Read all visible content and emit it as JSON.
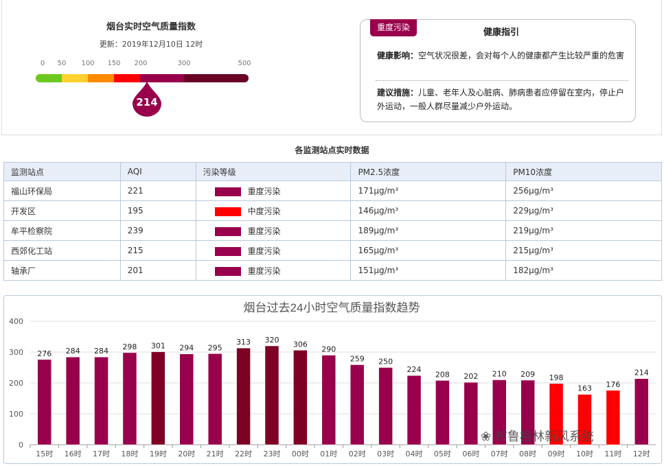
{
  "header": {
    "title": "烟台实时空气质量指数",
    "update": "更新：2019年12月10日 12时",
    "aqi_value": "214",
    "scale_ticks": [
      "0",
      "50",
      "100",
      "150",
      "200",
      "300",
      "500"
    ]
  },
  "health": {
    "badge": "重度污染",
    "title": "健康指引",
    "effect_label": "健康影响：",
    "effect_text": "空气状况很差，会对每个人的健康都产生比较严重的危害",
    "advice_label": "建议措施：",
    "advice_text": "儿童、老年人及心脏病、肺病患者应停留在室内，停止户外运动，一般人群尽量减少户外运动。"
  },
  "stations": {
    "title": "各监测站点实时数据",
    "headers": [
      "监测站点",
      "AQI",
      "污染等级",
      "PM2.5浓度",
      "PM10浓度"
    ],
    "rows": [
      {
        "name": "福山环保局",
        "aqi": "221",
        "level": "重度污染",
        "color": "#99004c",
        "pm25": "171μg/m³",
        "pm10": "256μg/m³"
      },
      {
        "name": "开发区",
        "aqi": "195",
        "level": "中度污染",
        "color": "#ff0000",
        "pm25": "146μg/m³",
        "pm10": "229μg/m³"
      },
      {
        "name": "牟平检察院",
        "aqi": "239",
        "level": "重度污染",
        "color": "#99004c",
        "pm25": "189μg/m³",
        "pm10": "219μg/m³"
      },
      {
        "name": "西郊化工站",
        "aqi": "215",
        "level": "重度污染",
        "color": "#99004c",
        "pm25": "165μg/m³",
        "pm10": "215μg/m³"
      },
      {
        "name": "轴承厂",
        "aqi": "201",
        "level": "重度污染",
        "color": "#99004c",
        "pm25": "151μg/m³",
        "pm10": "182μg/m³"
      }
    ]
  },
  "watermark": "布鲁格林新风系统",
  "chart_data": {
    "type": "bar",
    "title": "烟台过去24小时空气质量指数趋势",
    "categories": [
      "15时",
      "16时",
      "17时",
      "18时",
      "19时",
      "20时",
      "21时",
      "22时",
      "23时",
      "00时",
      "01时",
      "02时",
      "03时",
      "04时",
      "05时",
      "06时",
      "07时",
      "08时",
      "09时",
      "10时",
      "11时",
      "12时"
    ],
    "values": [
      276,
      284,
      284,
      298,
      301,
      294,
      295,
      313,
      320,
      306,
      290,
      259,
      250,
      224,
      208,
      202,
      210,
      209,
      198,
      163,
      176,
      214
    ],
    "ylim": [
      0,
      400
    ],
    "yticks": [
      0,
      100,
      200,
      300,
      400
    ],
    "grid": true,
    "colors": {
      "moderate": "#ff0000",
      "heavy": "#99004c",
      "severe": "#7e0023"
    },
    "xlabel": "",
    "ylabel": ""
  }
}
